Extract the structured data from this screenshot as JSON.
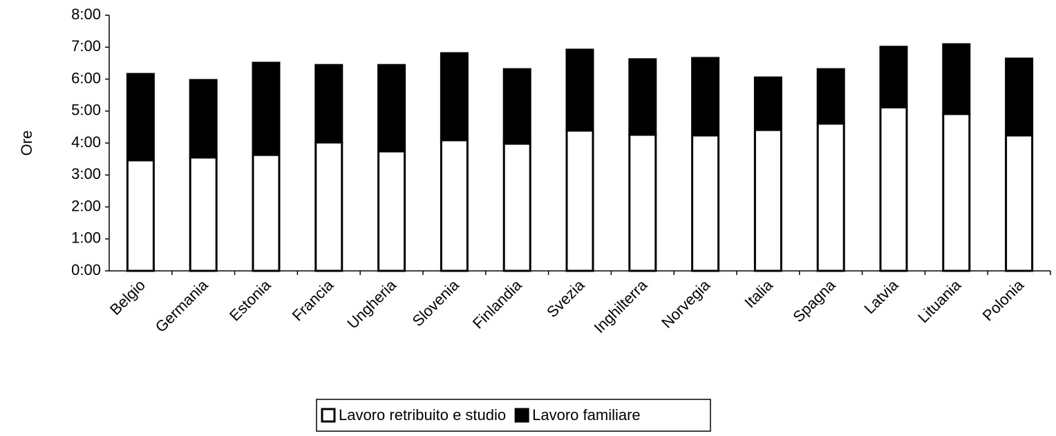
{
  "chart_data": {
    "type": "stacked-bar",
    "y_label": "Ore",
    "categories": [
      "Belgio",
      "Germania",
      "Estonia",
      "Francia",
      "Ungheria",
      "Slovenia",
      "Finlandia",
      "Svezia",
      "Inghilterra",
      "Norvegia",
      "Italia",
      "Spagna",
      "Latvia",
      "Lituania",
      "Polonia"
    ],
    "series": [
      {
        "name": "Lavoro retribuito e studio",
        "color": "#ffffff",
        "values": [
          3.46,
          3.55,
          3.63,
          4.02,
          3.74,
          4.09,
          3.98,
          4.39,
          4.26,
          4.24,
          4.41,
          4.61,
          5.12,
          4.91,
          4.24
        ]
      },
      {
        "name": "Lavoro familiare",
        "color": "#000000",
        "values": [
          2.7,
          2.42,
          2.88,
          2.42,
          2.7,
          2.72,
          2.33,
          2.53,
          2.36,
          2.42,
          1.64,
          1.7,
          1.89,
          2.18,
          2.4
        ]
      }
    ],
    "ylim": [
      0,
      8
    ],
    "yticks": [
      {
        "value": 0,
        "label": "0:00"
      },
      {
        "value": 1,
        "label": "1:00"
      },
      {
        "value": 2,
        "label": "2:00"
      },
      {
        "value": 3,
        "label": "3:00"
      },
      {
        "value": 4,
        "label": "4:00"
      },
      {
        "value": 5,
        "label": "5:00"
      },
      {
        "value": 6,
        "label": "6:00"
      },
      {
        "value": 7,
        "label": "7:00"
      },
      {
        "value": 8,
        "label": "8:00"
      }
    ],
    "legend": "bottom"
  }
}
